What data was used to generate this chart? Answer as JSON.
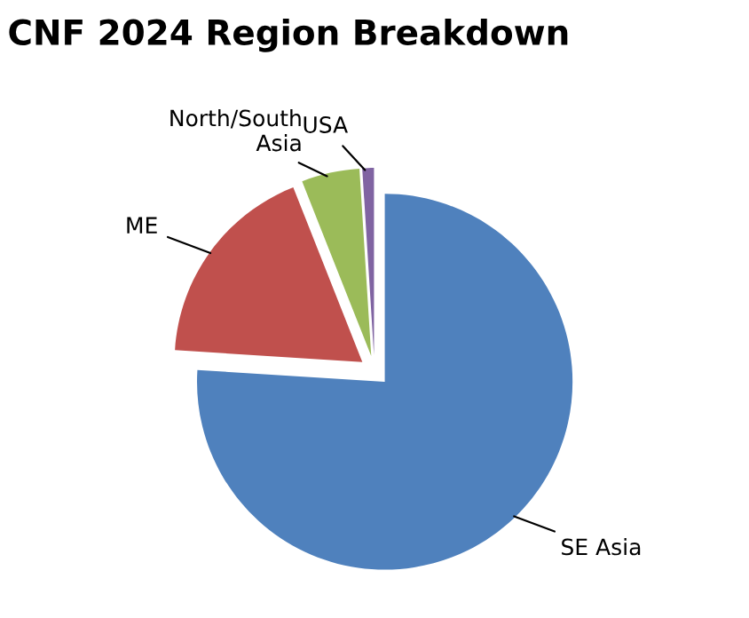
{
  "chart_data": {
    "type": "pie",
    "title": "CNF 2024 Region Breakdown",
    "categories": [
      "SE Asia",
      "ME",
      "North/South\nAsia",
      "USA"
    ],
    "values": [
      76,
      18,
      5,
      1
    ],
    "colors": [
      "#4f81bd",
      "#c0504d",
      "#9bbb59",
      "#8064a2"
    ],
    "legend": false
  }
}
